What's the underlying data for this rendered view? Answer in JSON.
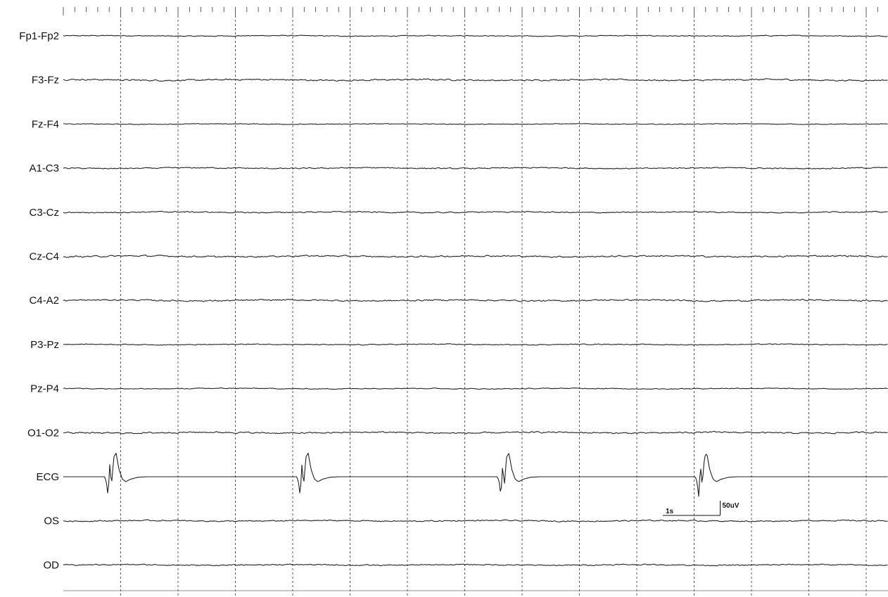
{
  "chart_data": {
    "type": "line",
    "title": "",
    "xlabel": "",
    "ylabel": "",
    "x_unit": "s",
    "x_range": [
      0,
      14.4
    ],
    "time_gridline_interval_s": 1,
    "amplitude_unit": "uV",
    "channels": [
      {
        "name": "Fp1-Fp2",
        "noise_uV": 1.5
      },
      {
        "name": "F3-Fz",
        "noise_uV": 2.5
      },
      {
        "name": "Fz-F4",
        "noise_uV": 1.2
      },
      {
        "name": "A1-C3",
        "noise_uV": 2.0
      },
      {
        "name": "C3-Cz",
        "noise_uV": 2.0
      },
      {
        "name": "Cz-C4",
        "noise_uV": 2.5
      },
      {
        "name": "C4-A2",
        "noise_uV": 2.5
      },
      {
        "name": "P3-Pz",
        "noise_uV": 1.5
      },
      {
        "name": "Pz-P4",
        "noise_uV": 1.5
      },
      {
        "name": "O1-O2",
        "noise_uV": 2.5
      },
      {
        "name": "ECG",
        "noise_uV": 0,
        "ecg_peak_uV": 50,
        "beat_times_s": [
          0.75,
          4.1,
          7.6,
          11.05
        ]
      },
      {
        "name": "OS",
        "noise_uV": 2.0
      },
      {
        "name": "OD",
        "noise_uV": 2.0
      }
    ],
    "scale_bar": {
      "time_label": "1s",
      "amplitude_label": "50uV",
      "time_s": 1,
      "amplitude_uV": 50
    },
    "colors": {
      "trace": "#222222",
      "grid": "#333333",
      "background": "#ffffff"
    }
  }
}
